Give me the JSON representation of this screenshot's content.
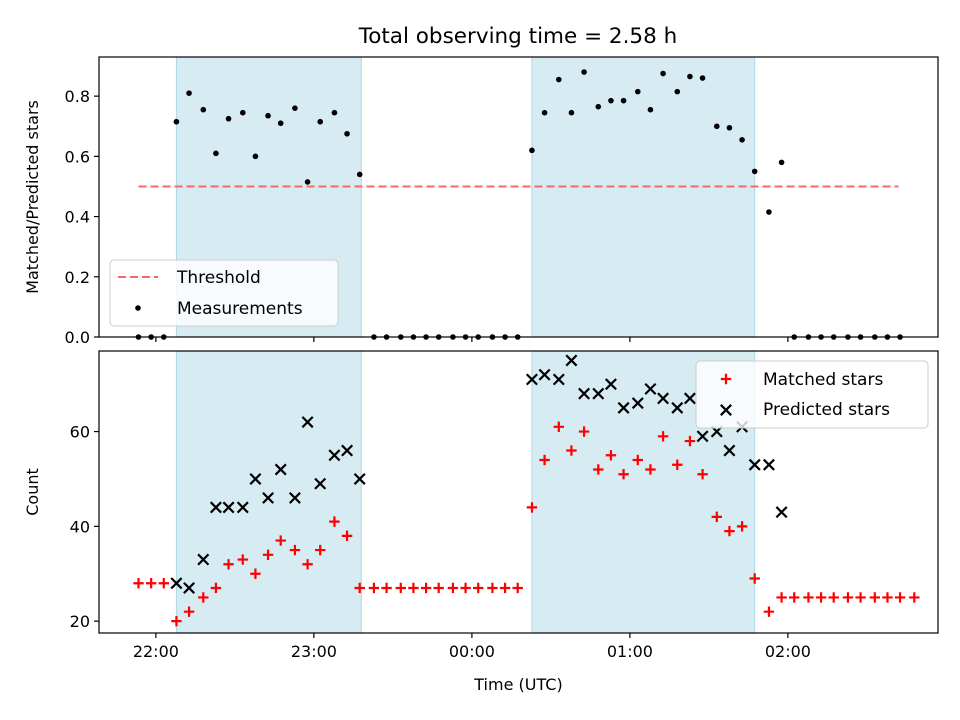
{
  "title": "Total observing time = 2.58 h",
  "colors": {
    "shade": "#add8e6",
    "threshold": "#ff6666",
    "measurement": "#000000",
    "matched": "#ff0000",
    "predicted": "#000000"
  },
  "chart_data": [
    {
      "type": "scatter",
      "title": "Total observing time = 2.58 h",
      "xlabel": "",
      "ylabel": "Matched/Predicted stars",
      "x_unit": "hours since 22:00 UTC",
      "xlim": [
        -0.36,
        4.95
      ],
      "ylim": [
        0.0,
        0.93
      ],
      "yticks": [
        0.0,
        0.2,
        0.4,
        0.6,
        0.8
      ],
      "ytick_labels": [
        "0.0",
        "0.2",
        "0.4",
        "0.6",
        "0.8"
      ],
      "grid": false,
      "legend_position": "lower-left",
      "observing_windows": [
        [
          0.13,
          1.3
        ],
        [
          2.38,
          3.79
        ]
      ],
      "threshold": {
        "name": "Threshold",
        "style": "dashed",
        "x_range": [
          -0.11,
          4.7
        ],
        "y": 0.5
      },
      "series": [
        {
          "name": "Measurements",
          "marker": "dot",
          "points": [
            [
              -0.11,
              0.0
            ],
            [
              -0.03,
              0.0
            ],
            [
              0.05,
              0.0
            ],
            [
              0.13,
              0.715
            ],
            [
              0.21,
              0.81
            ],
            [
              0.3,
              0.755
            ],
            [
              0.38,
              0.61
            ],
            [
              0.46,
              0.725
            ],
            [
              0.55,
              0.745
            ],
            [
              0.63,
              0.6
            ],
            [
              0.71,
              0.735
            ],
            [
              0.79,
              0.71
            ],
            [
              0.88,
              0.76
            ],
            [
              0.96,
              0.515
            ],
            [
              1.04,
              0.715
            ],
            [
              1.13,
              0.745
            ],
            [
              1.21,
              0.675
            ],
            [
              1.29,
              0.54
            ],
            [
              1.38,
              0.0
            ],
            [
              1.46,
              0.0
            ],
            [
              1.55,
              0.0
            ],
            [
              1.63,
              0.0
            ],
            [
              1.71,
              0.0
            ],
            [
              1.79,
              0.0
            ],
            [
              1.88,
              0.0
            ],
            [
              1.96,
              0.0
            ],
            [
              2.04,
              0.0
            ],
            [
              2.13,
              0.0
            ],
            [
              2.21,
              0.0
            ],
            [
              2.29,
              0.0
            ],
            [
              2.38,
              0.62
            ],
            [
              2.46,
              0.745
            ],
            [
              2.55,
              0.855
            ],
            [
              2.63,
              0.745
            ],
            [
              2.71,
              0.88
            ],
            [
              2.8,
              0.765
            ],
            [
              2.88,
              0.785
            ],
            [
              2.96,
              0.785
            ],
            [
              3.05,
              0.815
            ],
            [
              3.13,
              0.755
            ],
            [
              3.21,
              0.875
            ],
            [
              3.3,
              0.815
            ],
            [
              3.38,
              0.865
            ],
            [
              3.46,
              0.86
            ],
            [
              3.55,
              0.7
            ],
            [
              3.63,
              0.695
            ],
            [
              3.71,
              0.655
            ],
            [
              3.79,
              0.55
            ],
            [
              3.88,
              0.415
            ],
            [
              3.96,
              0.58
            ],
            [
              4.04,
              0.0
            ],
            [
              4.13,
              0.0
            ],
            [
              4.21,
              0.0
            ],
            [
              4.29,
              0.0
            ],
            [
              4.38,
              0.0
            ],
            [
              4.46,
              0.0
            ],
            [
              4.55,
              0.0
            ],
            [
              4.63,
              0.0
            ],
            [
              4.71,
              0.0
            ]
          ]
        }
      ]
    },
    {
      "type": "scatter",
      "title": "",
      "xlabel": "Time (UTC)",
      "ylabel": "Count",
      "x_unit": "hours since 22:00 UTC",
      "xlim": [
        -0.36,
        4.95
      ],
      "ylim": [
        17.5,
        77
      ],
      "xticks": [
        0,
        1,
        2,
        3,
        4
      ],
      "xtick_labels": [
        "22:00",
        "23:00",
        "00:00",
        "01:00",
        "02:00"
      ],
      "yticks": [
        20,
        40,
        60
      ],
      "ytick_labels": [
        "20",
        "40",
        "60"
      ],
      "grid": false,
      "legend_position": "upper-right",
      "observing_windows": [
        [
          0.13,
          1.3
        ],
        [
          2.38,
          3.79
        ]
      ],
      "series": [
        {
          "name": "Matched stars",
          "marker": "plus",
          "points": [
            [
              -0.11,
              28
            ],
            [
              -0.03,
              28
            ],
            [
              0.05,
              28
            ],
            [
              0.13,
              20
            ],
            [
              0.21,
              22
            ],
            [
              0.3,
              25
            ],
            [
              0.38,
              27
            ],
            [
              0.46,
              32
            ],
            [
              0.55,
              33
            ],
            [
              0.63,
              30
            ],
            [
              0.71,
              34
            ],
            [
              0.79,
              37
            ],
            [
              0.88,
              35
            ],
            [
              0.96,
              32
            ],
            [
              1.04,
              35
            ],
            [
              1.13,
              41
            ],
            [
              1.21,
              38
            ],
            [
              1.29,
              27
            ],
            [
              1.38,
              27
            ],
            [
              1.46,
              27
            ],
            [
              1.55,
              27
            ],
            [
              1.63,
              27
            ],
            [
              1.71,
              27
            ],
            [
              1.79,
              27
            ],
            [
              1.88,
              27
            ],
            [
              1.96,
              27
            ],
            [
              2.04,
              27
            ],
            [
              2.13,
              27
            ],
            [
              2.21,
              27
            ],
            [
              2.29,
              27
            ],
            [
              2.38,
              44
            ],
            [
              2.46,
              54
            ],
            [
              2.55,
              61
            ],
            [
              2.63,
              56
            ],
            [
              2.71,
              60
            ],
            [
              2.8,
              52
            ],
            [
              2.88,
              55
            ],
            [
              2.96,
              51
            ],
            [
              3.05,
              54
            ],
            [
              3.13,
              52
            ],
            [
              3.21,
              59
            ],
            [
              3.3,
              53
            ],
            [
              3.38,
              58
            ],
            [
              3.46,
              51
            ],
            [
              3.55,
              42
            ],
            [
              3.63,
              39
            ],
            [
              3.71,
              40
            ],
            [
              3.79,
              29
            ],
            [
              3.88,
              22
            ],
            [
              3.96,
              25
            ],
            [
              4.04,
              25
            ],
            [
              4.13,
              25
            ],
            [
              4.21,
              25
            ],
            [
              4.29,
              25
            ],
            [
              4.38,
              25
            ],
            [
              4.46,
              25
            ],
            [
              4.55,
              25
            ],
            [
              4.63,
              25
            ],
            [
              4.71,
              25
            ],
            [
              4.8,
              25
            ]
          ]
        },
        {
          "name": "Predicted stars",
          "marker": "x",
          "points": [
            [
              0.13,
              28
            ],
            [
              0.21,
              27
            ],
            [
              0.3,
              33
            ],
            [
              0.38,
              44
            ],
            [
              0.46,
              44
            ],
            [
              0.55,
              44
            ],
            [
              0.63,
              50
            ],
            [
              0.71,
              46
            ],
            [
              0.79,
              52
            ],
            [
              0.88,
              46
            ],
            [
              0.96,
              62
            ],
            [
              1.04,
              49
            ],
            [
              1.13,
              55
            ],
            [
              1.21,
              56
            ],
            [
              1.29,
              50
            ],
            [
              2.38,
              71
            ],
            [
              2.46,
              72
            ],
            [
              2.55,
              71
            ],
            [
              2.63,
              75
            ],
            [
              2.71,
              68
            ],
            [
              2.8,
              68
            ],
            [
              2.88,
              70
            ],
            [
              2.96,
              65
            ],
            [
              3.05,
              66
            ],
            [
              3.13,
              69
            ],
            [
              3.21,
              67
            ],
            [
              3.3,
              65
            ],
            [
              3.38,
              67
            ],
            [
              3.46,
              59
            ],
            [
              3.55,
              60
            ],
            [
              3.63,
              56
            ],
            [
              3.71,
              61
            ],
            [
              3.79,
              53
            ],
            [
              3.88,
              53
            ],
            [
              3.96,
              43
            ]
          ]
        }
      ]
    }
  ]
}
